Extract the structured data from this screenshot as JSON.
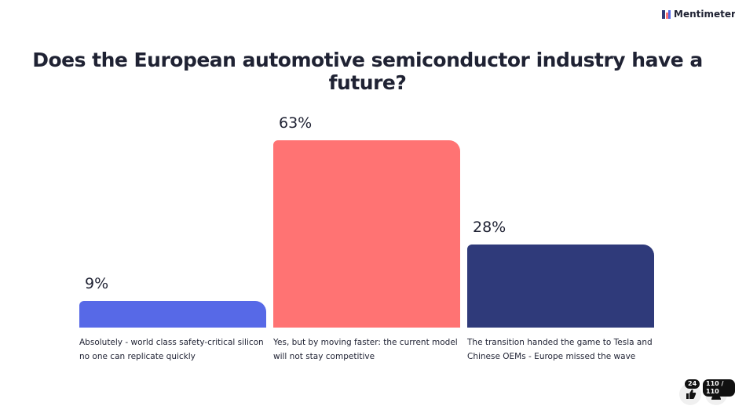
{
  "brand": "Mentimeter",
  "reactions": 24,
  "responses": "110 / 110",
  "chart_data": {
    "type": "bar",
    "title": "Does the European automotive semiconductor industry have a future?",
    "categories": [
      "Absolutely - world class safety-critical silicon no one can replicate quickly",
      "Yes, but by moving faster: the current model will not stay competitive",
      "The transition handed the game to Tesla and Chinese OEMs - Europe missed the wave"
    ],
    "values": [
      9,
      63,
      28
    ],
    "value_labels": [
      "9%",
      "63%",
      "28%"
    ],
    "colors": [
      "#5769e7",
      "#ff7373",
      "#2f3a7a"
    ]
  }
}
